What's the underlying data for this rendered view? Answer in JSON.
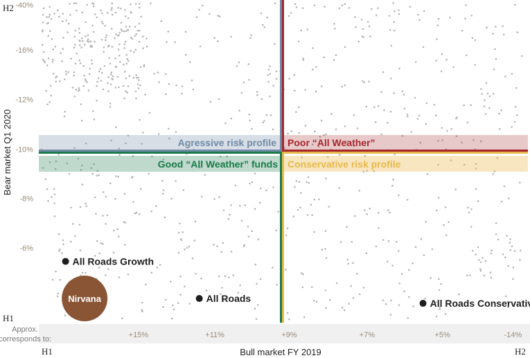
{
  "chart_data": {
    "type": "scatter",
    "ylabel": "Bear market Q1 2020",
    "xlabel": "Bull market FY 2019",
    "approx_label_line1": "Approx.",
    "approx_label_line2": "corresponds to:",
    "y_ticks": [
      {
        "label": "-40%",
        "frac": 0.0
      },
      {
        "label": "-16%",
        "frac": 0.155
      },
      {
        "label": "-12%",
        "frac": 0.308
      },
      {
        "label": "-10%",
        "frac": 0.462
      },
      {
        "label": "-8%",
        "frac": 0.615
      },
      {
        "label": "-6%",
        "frac": 0.768
      }
    ],
    "x_ticks": [
      {
        "label": "+15%",
        "frac": 0.205
      },
      {
        "label": "+11%",
        "frac": 0.362
      },
      {
        "label": "+9%",
        "frac": 0.515
      },
      {
        "label": "+7%",
        "frac": 0.675
      },
      {
        "label": "+5%",
        "frac": 0.83
      },
      {
        "label": "-14%",
        "frac": 0.975
      }
    ],
    "corner_marks": {
      "top_left": "H2",
      "bottom_left": "H1",
      "x_left": "H1",
      "x_right": "H2"
    },
    "quadrant_split": {
      "x": 0.5,
      "y": 0.47
    },
    "zones": [
      {
        "label": "Agressive risk profile",
        "color": "#6f8aa6"
      },
      {
        "label": "Poor “All Weather”",
        "color": "#a4262c"
      },
      {
        "label": "Good “All Weather” funds",
        "color": "#1a7a4a"
      },
      {
        "label": "Conservative risk profile",
        "color": "#e8b84a"
      }
    ],
    "funds": [
      {
        "name": "All Roads Growth",
        "x": 0.055,
        "y": 0.81
      },
      {
        "name": "All Roads",
        "x": 0.33,
        "y": 0.925
      },
      {
        "name": "All Roads Conservative",
        "x": 0.79,
        "y": 0.94
      }
    ],
    "highlight": {
      "label": "Nirvana",
      "x": 0.06,
      "y": 0.925,
      "color": "#8a5535"
    },
    "background_points_count": 900,
    "colors": {
      "points": "#b5b5b5",
      "axis": "#333333"
    }
  }
}
